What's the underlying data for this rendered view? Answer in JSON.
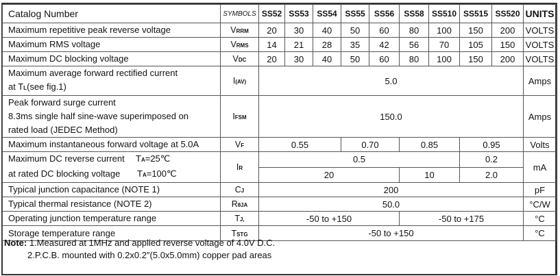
{
  "header": {
    "catalog": "Catalog  Number",
    "symbols": "SYMBOLS",
    "parts": [
      "SS52",
      "SS53",
      "SS54",
      "SS55",
      "SS56",
      "SS58",
      "SS510",
      "SS515",
      "SS520"
    ],
    "units": "UNITS"
  },
  "rows": {
    "vrrm": {
      "label": "Maximum repetitive peak reverse voltage",
      "sym": "V",
      "sub": "RRM",
      "values": [
        "20",
        "30",
        "40",
        "50",
        "60",
        "80",
        "100",
        "150",
        "200"
      ],
      "unit": "VOLTS"
    },
    "vrms": {
      "label": "Maximum RMS voltage",
      "sym": "V",
      "sub": "RMS",
      "values": [
        "14",
        "21",
        "28",
        "35",
        "42",
        "56",
        "70",
        "105",
        "150"
      ],
      "unit": "VOLTS"
    },
    "vdc": {
      "label": "Maximum DC blocking voltage",
      "sym": "V",
      "sub": "DC",
      "values": [
        "20",
        "30",
        "40",
        "50",
        "60",
        "80",
        "100",
        "150",
        "200"
      ],
      "unit": "VOLTS"
    },
    "iav": {
      "label1": "Maximum average forward rectified current",
      "label2a": "at T",
      "label2sub": "L",
      "label2b": "(see fig.1)",
      "sym": "I",
      "sub": "(AV)",
      "value": "5.0",
      "unit": "Amps"
    },
    "ifsm": {
      "label1": "Peak forward surge current",
      "label2": "8.3ms single half sine-wave superimposed on",
      "label3": "rated load (JEDEC Method)",
      "sym": "I",
      "sub": "FSM",
      "value": "150.0",
      "unit": "Amps"
    },
    "vf": {
      "label": "Maximum instantaneous forward voltage at 5.0A",
      "sym": "V",
      "sub": "F",
      "values": [
        "0.55",
        "0.70",
        "0.85",
        "0.95"
      ],
      "unit": "Volts"
    },
    "ir": {
      "label1": "Maximum DC reverse current",
      "cond1a": "T",
      "cond1sub": "A",
      "cond1b": "=25℃",
      "label2": "at rated DC blocking voltage",
      "cond2a": "T",
      "cond2sub": "A",
      "cond2b": "=100℃",
      "sym": "I",
      "sub": "R",
      "values25": [
        "0.5",
        "0.2"
      ],
      "values100": [
        "20",
        "10",
        "2.0"
      ],
      "unit": "mA"
    },
    "cj": {
      "label": "Typical junction capacitance (NOTE 1)",
      "sym": "C",
      "sub": "J",
      "value": "200",
      "unit": "pF"
    },
    "rtheta": {
      "label": "Typical thermal resistance (NOTE 2)",
      "sym": "R",
      "sub": "θJA",
      "value": "50.0",
      "unit": "°C/W"
    },
    "tj": {
      "label": "Operating junction temperature range",
      "sym": "T",
      "sub": "J,",
      "values": [
        "-50 to +150",
        "-50 to +175"
      ],
      "unit": "°C"
    },
    "tstg": {
      "label": "Storage temperature range",
      "sym": "T",
      "sub": "STG",
      "value": "-50 to +150",
      "unit": "°C"
    }
  },
  "notes": {
    "title": "Note:",
    "note1": "1.Measured at 1MHz and applied reverse voltage of 4.0V D.C.",
    "note2": "2.P.C.B. mounted with 0.2x0.2″(5.0x5.0mm) copper pad areas"
  }
}
